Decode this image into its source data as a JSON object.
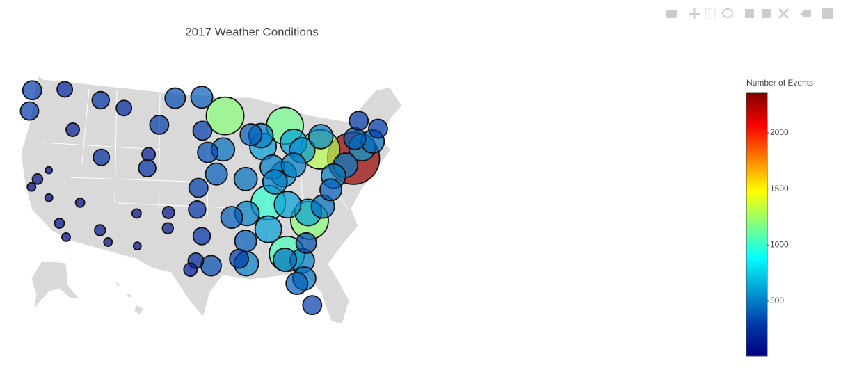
{
  "chart_data": {
    "type": "scattergeo",
    "title": "2017 Weather Conditions",
    "colorbar_title": "Number of Events",
    "clim": [
      10,
      2360
    ],
    "cticks": [
      500,
      1000,
      1500,
      2000
    ],
    "colorscale": [
      [
        0,
        "#000083"
      ],
      [
        0.125,
        "#003caa"
      ],
      [
        0.375,
        "#05ffff"
      ],
      [
        0.625,
        "#ffff00"
      ],
      [
        0.875,
        "#fa0000"
      ],
      [
        1,
        "#800000"
      ]
    ],
    "lon": [
      -122.3,
      -122.7,
      -117.4,
      -116.2,
      -122.4,
      -118.2,
      -117.2,
      -121.5,
      -119.8,
      -119.8,
      -115.1,
      -112.1,
      -110.9,
      -111.9,
      -105,
      -106.6,
      -108.5,
      -112,
      -104.8,
      -103.2,
      -100.8,
      -96.8,
      -96.7,
      -95.9,
      -97.3,
      -97.5,
      -96.8,
      -97.7,
      -95.4,
      -98.5,
      -106.5,
      -101.9,
      -101.8,
      -94.6,
      -90.2,
      -93.3,
      -93.6,
      -87.9,
      -87.6,
      -89.4,
      -83,
      -84.3,
      -86.2,
      -83,
      -81.7,
      -79,
      -78.9,
      -74,
      -71.1,
      -75.2,
      -77,
      -77.4,
      -80.8,
      -78.6,
      -84,
      -86.8,
      -90,
      -85.8,
      -84.5,
      -83.9,
      -86.8,
      -90.2,
      -90.1,
      -91.2,
      -92.3,
      -81.7,
      -82.5,
      -81.4,
      -80.2,
      -84.3,
      -81.1,
      -80.6,
      -73.8,
      -70.3,
      -73.2,
      -72.7
    ],
    "lat": [
      47.6,
      45.5,
      47.7,
      43.6,
      37.8,
      34.1,
      32.7,
      38.6,
      36.7,
      39.5,
      36.2,
      33.4,
      32.2,
      40.8,
      39.7,
      35.1,
      45.8,
      46.6,
      41.1,
      44.1,
      46.8,
      46.9,
      43.5,
      41.3,
      37.7,
      35.5,
      32.8,
      30.3,
      29.8,
      29.4,
      31.8,
      33.6,
      35.2,
      39.1,
      38.6,
      45,
      41.6,
      43,
      41.9,
      43.1,
      42.3,
      44,
      39.8,
      40,
      41.5,
      41.6,
      42.9,
      40.7,
      42.4,
      40,
      38.9,
      37.5,
      35.2,
      35.8,
      31,
      36.2,
      35.1,
      38.3,
      39.1,
      36,
      33.5,
      32.3,
      30,
      30.5,
      34.7,
      30.3,
      28,
      28.5,
      25.8,
      30.4,
      32.1,
      34.4,
      42.7,
      43.7,
      44.5,
      41.8
    ],
    "values": [
      300,
      280,
      200,
      150,
      60,
      80,
      60,
      90,
      50,
      40,
      70,
      100,
      60,
      220,
      250,
      70,
      200,
      250,
      150,
      300,
      350,
      400,
      300,
      350,
      300,
      250,
      250,
      200,
      350,
      150,
      50,
      100,
      120,
      400,
      450,
      1200,
      450,
      500,
      600,
      400,
      600,
      1150,
      500,
      500,
      550,
      1300,
      500,
      2300,
      450,
      500,
      500,
      400,
      600,
      450,
      1050,
      1000,
      500,
      500,
      550,
      600,
      600,
      400,
      500,
      300,
      400,
      500,
      400,
      450,
      300,
      450,
      350,
      1200,
      400,
      300,
      300,
      600
    ]
  }
}
